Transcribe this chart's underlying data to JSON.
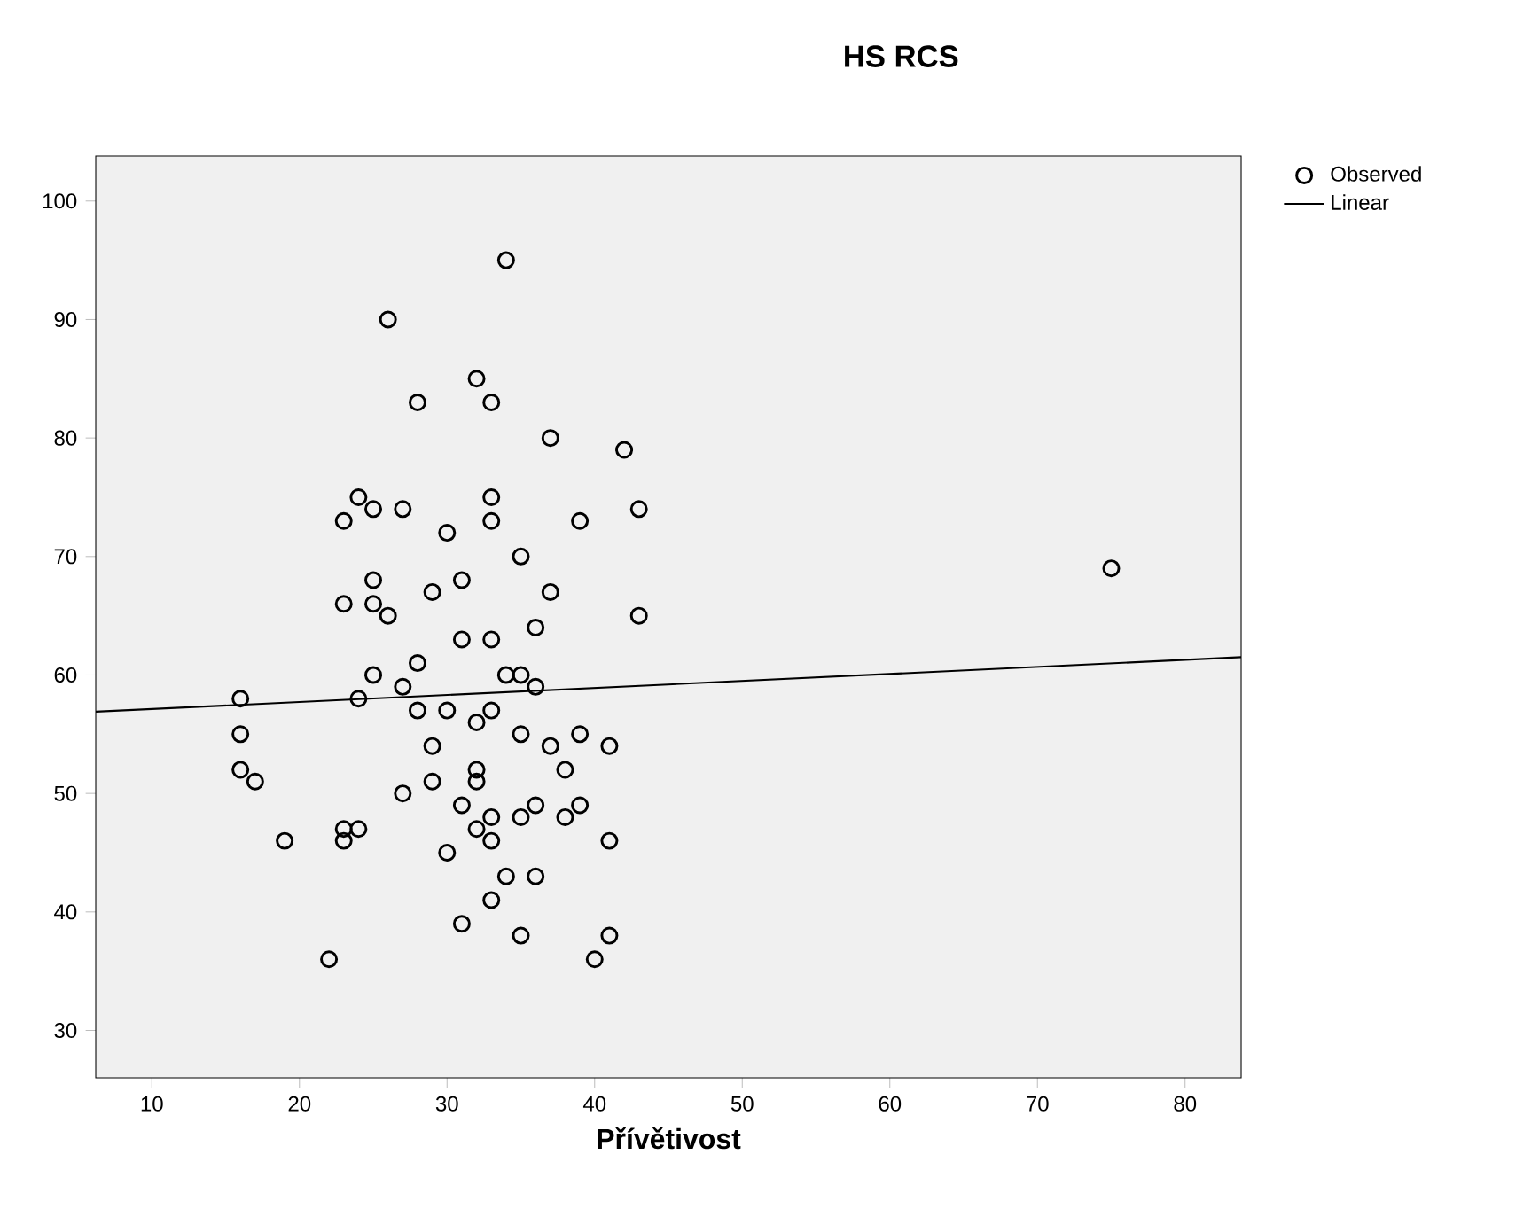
{
  "chart_data": {
    "type": "scatter",
    "title": "HS RCS",
    "xlabel": "Přívětivost",
    "xlim": [
      6.2,
      83.8
    ],
    "ylim": [
      26,
      103.8
    ],
    "xticks": [
      10,
      20,
      30,
      40,
      50,
      60,
      70,
      80
    ],
    "yticks": [
      30,
      40,
      50,
      60,
      70,
      80,
      90,
      100
    ],
    "grid": false,
    "legend": "top right",
    "marker": "circle",
    "series": [
      {
        "name": "Observed",
        "color": "#000000",
        "x": [
          34,
          26,
          32,
          28,
          33,
          37,
          42,
          24,
          33,
          23,
          25,
          27,
          33,
          39,
          43,
          30,
          35,
          75,
          25,
          31,
          29,
          37,
          23,
          25,
          26,
          43,
          36,
          31,
          33,
          28,
          25,
          34,
          35,
          16,
          24,
          27,
          36,
          28,
          30,
          33,
          32,
          16,
          35,
          39,
          29,
          37,
          41,
          16,
          32,
          38,
          17,
          29,
          32,
          27,
          31,
          36,
          39,
          33,
          35,
          38,
          23,
          24,
          32,
          19,
          23,
          33,
          41,
          30,
          34,
          36,
          33,
          31,
          35,
          41,
          22,
          40
        ],
        "values": [
          95,
          90,
          85,
          83,
          83,
          80,
          79,
          75,
          75,
          73,
          74,
          74,
          73,
          73,
          74,
          72,
          70,
          69,
          68,
          68,
          67,
          67,
          66,
          66,
          65,
          65,
          64,
          63,
          63,
          61,
          60,
          60,
          60,
          58,
          58,
          59,
          59,
          57,
          57,
          57,
          56,
          55,
          55,
          55,
          54,
          54,
          54,
          52,
          52,
          52,
          51,
          51,
          51,
          50,
          49,
          49,
          49,
          48,
          48,
          48,
          47,
          47,
          47,
          46,
          46,
          46,
          46,
          45,
          43,
          43,
          41,
          39,
          38,
          38,
          36,
          36
        ]
      },
      {
        "name": "Linear",
        "type": "line",
        "color": "#000000",
        "marker": "none",
        "line_style": "solid",
        "x": [
          6.2,
          83.8
        ],
        "values": [
          56.9,
          61.5
        ]
      }
    ]
  }
}
